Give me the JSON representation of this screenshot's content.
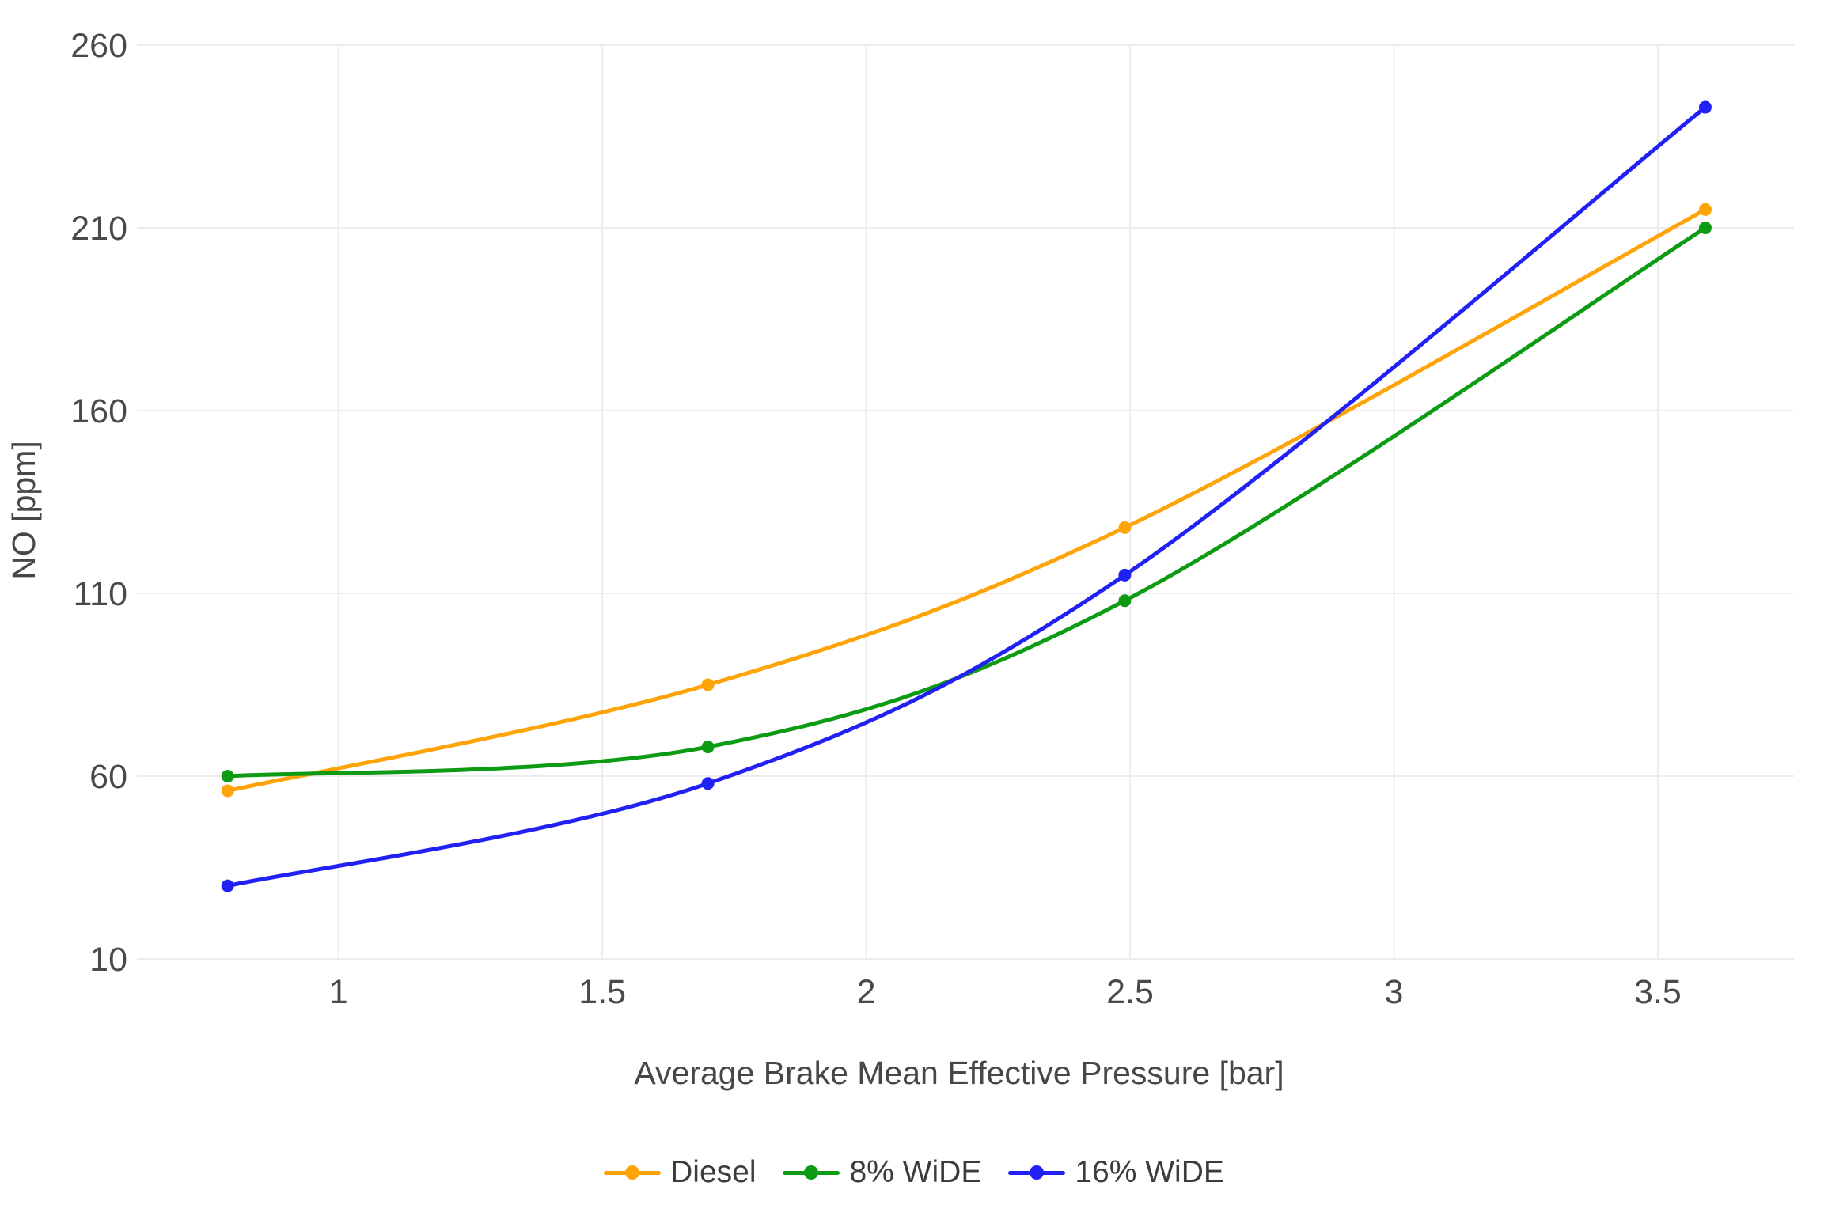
{
  "chart_data": {
    "type": "line",
    "title": "",
    "xlabel": "Average Brake Mean Effective Pressure [bar]",
    "ylabel": "NO [ppm]",
    "x": [
      0.79,
      1.7,
      2.49,
      3.59
    ],
    "series": [
      {
        "name": "Diesel",
        "color": "#FFA408",
        "values": [
          56,
          85,
          128,
          215
        ]
      },
      {
        "name": "8% WiDE",
        "color": "#0D9B13",
        "values": [
          60,
          68,
          108,
          210
        ]
      },
      {
        "name": "16% WiDE",
        "color": "#2121F6",
        "values": [
          30,
          58,
          115,
          243
        ]
      }
    ],
    "xticks": [
      "1",
      "1.5",
      "2",
      "2.5",
      "3",
      "3.5"
    ],
    "xtick_values": [
      1,
      1.5,
      2,
      2.5,
      3,
      3.5
    ],
    "yticks": [
      "10",
      "60",
      "110",
      "160",
      "210",
      "260"
    ],
    "ytick_values": [
      10,
      60,
      110,
      160,
      210,
      260
    ],
    "xlim": [
      0.618,
      3.758
    ],
    "ylim": [
      10,
      260
    ],
    "grid": true,
    "line_shape": "spline",
    "markers": true,
    "legend_position": "bottom"
  },
  "colors": {
    "background": "#ffffff",
    "gridline": "#ececec",
    "tick_text": "#4a4a4a",
    "axis_title_text": "#474747",
    "legend_text": "#3c3c3c"
  }
}
